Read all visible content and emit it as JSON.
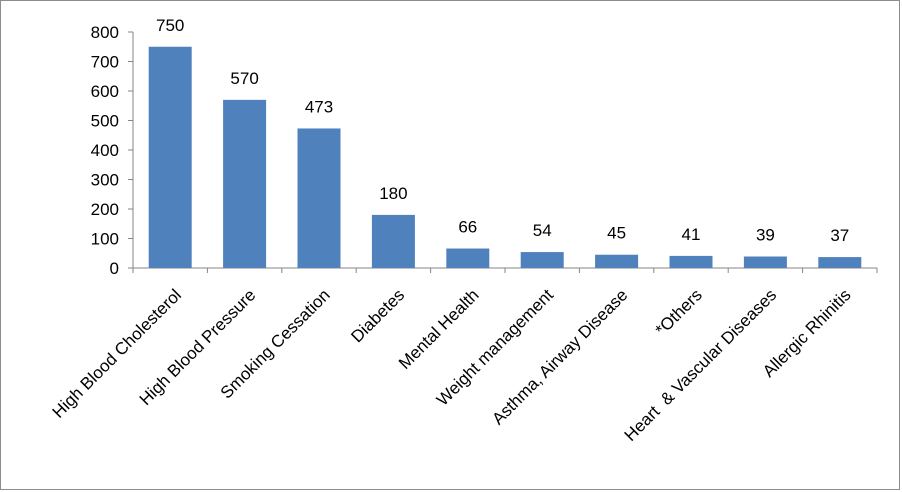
{
  "chart_data": {
    "type": "bar",
    "title": "",
    "xlabel": "",
    "ylabel": "",
    "ylim": [
      0,
      800
    ],
    "yticks": [
      0,
      100,
      200,
      300,
      400,
      500,
      600,
      700,
      800
    ],
    "grid": false,
    "legend": "none",
    "bar_color": "#4f81bd",
    "categories": [
      "High Blood Cholesterol",
      "High Blood Pressure",
      "Smoking Cessation",
      "Diabetes",
      "Mental Health",
      "Weight management",
      "Asthma, Airway Disease",
      "*Others",
      "Heart  & Vascular Diseases",
      "Allergic Rhinitis"
    ],
    "values": [
      750,
      570,
      473,
      180,
      66,
      54,
      45,
      41,
      39,
      37
    ],
    "data_labels": [
      "750",
      "570",
      "473",
      "180",
      "66",
      "54",
      "45",
      "41",
      "39",
      "37"
    ]
  }
}
